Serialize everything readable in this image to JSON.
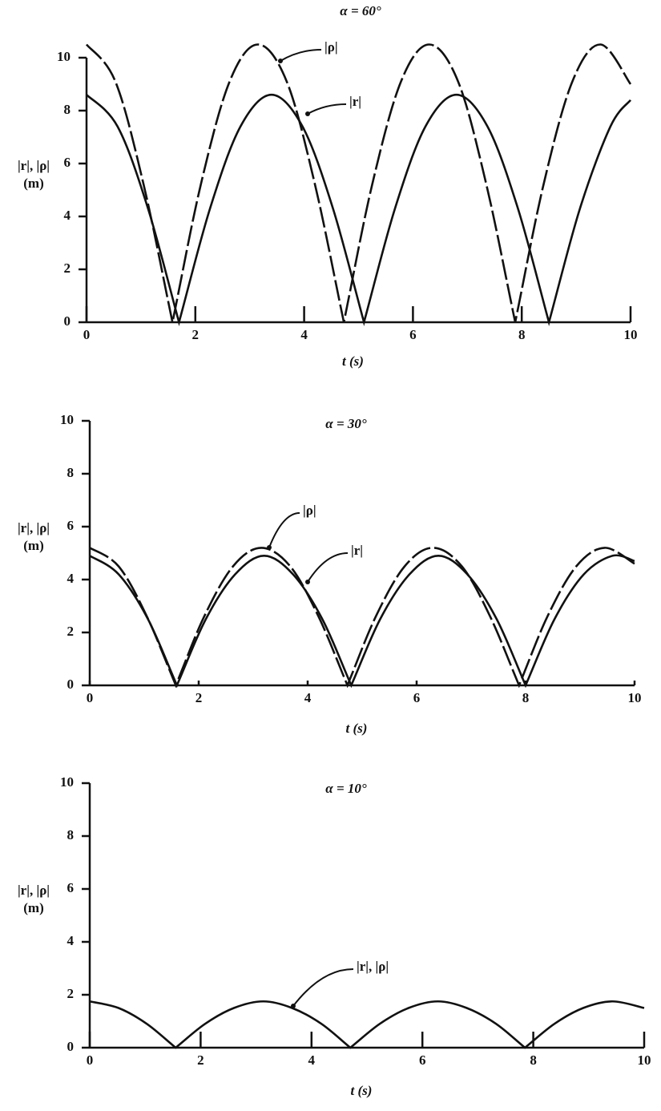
{
  "chart_data": [
    {
      "type": "line",
      "title": "α = 60°",
      "xlabel": "t (s)",
      "ylabel": "|r|, |ρ|",
      "yunit": "(m)",
      "xlim": [
        0,
        10
      ],
      "xticks": [
        0,
        2,
        4,
        6,
        8,
        10
      ],
      "ylim": [
        0,
        10
      ],
      "yticks": [
        0,
        2,
        4,
        6,
        8,
        10
      ],
      "series": [
        {
          "name": "|ρ|",
          "color": "#111111",
          "dashed": true,
          "x": [
            0,
            0.53,
            1.05,
            1.58,
            2.1,
            2.63,
            3.15,
            3.68,
            4.2,
            4.73,
            5.25,
            5.78,
            6.3,
            6.83,
            7.35,
            7.88,
            8.4,
            8.93,
            9.45,
            10
          ],
          "values": [
            10.5,
            9.1,
            5.2,
            0,
            5.2,
            9.1,
            10.5,
            9.1,
            5.2,
            0,
            5.2,
            9.1,
            10.5,
            9.1,
            5.2,
            0,
            5.2,
            9.1,
            10.5,
            9.0
          ]
        },
        {
          "name": "|r|",
          "color": "#111111",
          "dashed": false,
          "x": [
            0,
            0.57,
            1.13,
            1.7,
            2.27,
            2.83,
            3.4,
            3.97,
            4.53,
            5.1,
            5.67,
            6.23,
            6.8,
            7.37,
            7.93,
            8.5,
            9.07,
            9.63,
            10
          ],
          "values": [
            8.6,
            7.4,
            4.3,
            0,
            4.3,
            7.4,
            8.6,
            7.4,
            4.3,
            0,
            4.3,
            7.4,
            8.6,
            7.4,
            4.3,
            0,
            4.3,
            7.4,
            8.4
          ]
        }
      ]
    },
    {
      "type": "line",
      "title": "α = 30°",
      "xlabel": "t (s)",
      "ylabel": "|r|, |ρ|",
      "yunit": "(m)",
      "xlim": [
        0,
        10
      ],
      "xticks": [
        0,
        2,
        4,
        6,
        8,
        10
      ],
      "ylim": [
        0,
        10
      ],
      "yticks": [
        0,
        2,
        4,
        6,
        8,
        10
      ],
      "series": [
        {
          "name": "|ρ|",
          "color": "#111111",
          "dashed": true,
          "x": [
            0,
            0.53,
            1.05,
            1.58,
            2.1,
            2.63,
            3.15,
            3.68,
            4.2,
            4.73,
            5.25,
            5.78,
            6.3,
            6.83,
            7.35,
            7.88,
            8.4,
            8.93,
            9.45,
            10
          ],
          "values": [
            5.2,
            4.5,
            2.6,
            0,
            2.6,
            4.5,
            5.2,
            4.5,
            2.6,
            0,
            2.6,
            4.5,
            5.2,
            4.5,
            2.6,
            0,
            2.6,
            4.5,
            5.2,
            4.6
          ]
        },
        {
          "name": "|r|",
          "color": "#111111",
          "dashed": false,
          "x": [
            0,
            0.53,
            1.07,
            1.6,
            2.13,
            2.67,
            3.2,
            3.73,
            4.27,
            4.8,
            5.33,
            5.87,
            6.4,
            6.93,
            7.47,
            8.0,
            8.53,
            9.07,
            9.6,
            10
          ],
          "values": [
            4.9,
            4.2,
            2.5,
            0,
            2.5,
            4.2,
            4.9,
            4.2,
            2.5,
            0,
            2.5,
            4.2,
            4.9,
            4.2,
            2.5,
            0,
            2.5,
            4.2,
            4.9,
            4.7
          ]
        }
      ]
    },
    {
      "type": "line",
      "title": "α = 10°",
      "xlabel": "t (s)",
      "ylabel": "|r|, |ρ|",
      "yunit": "(m)",
      "xlim": [
        0,
        10
      ],
      "xticks": [
        0,
        2,
        4,
        6,
        8,
        10
      ],
      "ylim": [
        0,
        10
      ],
      "yticks": [
        0,
        2,
        4,
        6,
        8,
        10
      ],
      "series": [
        {
          "name": "|r|, |ρ|",
          "color": "#111111",
          "dashed": false,
          "x": [
            0,
            0.52,
            1.03,
            1.55,
            2.08,
            2.6,
            3.13,
            3.65,
            4.18,
            4.7,
            5.23,
            5.75,
            6.28,
            6.8,
            7.33,
            7.85,
            8.38,
            8.9,
            9.43,
            10
          ],
          "values": [
            1.75,
            1.5,
            0.9,
            0,
            0.9,
            1.5,
            1.75,
            1.5,
            0.9,
            0,
            0.9,
            1.5,
            1.75,
            1.5,
            0.9,
            0,
            0.9,
            1.5,
            1.75,
            1.5
          ]
        }
      ]
    }
  ]
}
